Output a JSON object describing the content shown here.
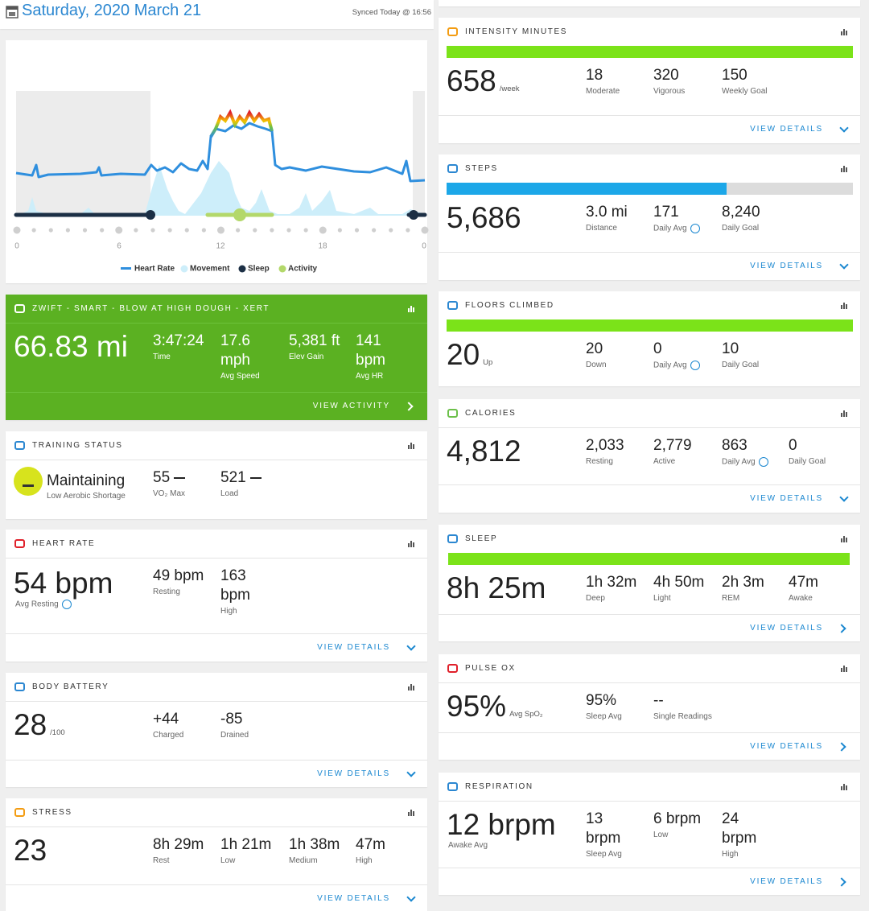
{
  "header": {
    "date": "Saturday, 2020 March 21",
    "synced": "Synced Today @ 16:56"
  },
  "timeline": {
    "hour_labels": [
      "0",
      "6",
      "12",
      "18",
      "0"
    ],
    "legend": [
      "Heart Rate",
      "Movement",
      "Sleep",
      "Activity"
    ]
  },
  "cards": [
    {
      "title": "ZWIFT - SMART - BLOW AT HIGH DOUGH - XERT",
      "value": "66.83 mi",
      "stats": [
        {
          "value": "3:47:24",
          "label": "Time"
        },
        {
          "value": "17.6 mph",
          "label": "Avg Speed"
        },
        {
          "value": "5,381 ft",
          "label": "Elev Gain"
        },
        {
          "value": "141 bpm",
          "label": "Avg HR"
        }
      ],
      "link": "VIEW ACTIVITY"
    },
    {
      "title": "TRAINING STATUS",
      "value": "Maintaining",
      "caption": "Low Aerobic Shortage",
      "stats": [
        {
          "value": "55",
          "label": "VO₂ Max"
        },
        {
          "value": "521",
          "label": "Load"
        }
      ]
    },
    {
      "title": "HEART RATE",
      "value": "54 bpm",
      "caption": "Avg Resting",
      "stats": [
        {
          "value": "49 bpm",
          "label": "Resting"
        },
        {
          "value": "163 bpm",
          "label": "High"
        }
      ],
      "link": "VIEW DETAILS"
    },
    {
      "title": "BODY BATTERY",
      "value": "28",
      "unit": "/100",
      "stats": [
        {
          "value": "+44",
          "label": "Charged"
        },
        {
          "value": "-85",
          "label": "Drained"
        }
      ],
      "link": "VIEW DETAILS"
    },
    {
      "title": "STRESS",
      "value": "23",
      "stats": [
        {
          "value": "8h 29m",
          "label": "Rest"
        },
        {
          "value": "1h 21m",
          "label": "Low"
        },
        {
          "value": "1h 38m",
          "label": "Medium"
        },
        {
          "value": "47m",
          "label": "High"
        }
      ],
      "link": "VIEW DETAILS"
    },
    {
      "title": "INTENSITY MINUTES",
      "value": "658",
      "unit": "/week",
      "stats": [
        {
          "value": "18",
          "label": "Moderate"
        },
        {
          "value": "320",
          "label": "Vigorous"
        },
        {
          "value": "150",
          "label": "Weekly Goal"
        }
      ],
      "link": "VIEW DETAILS"
    },
    {
      "title": "STEPS",
      "value": "5,686",
      "stats": [
        {
          "value": "3.0 mi",
          "label": "Distance"
        },
        {
          "value": "171",
          "label": "Daily Avg"
        },
        {
          "value": "8,240",
          "label": "Daily Goal"
        }
      ],
      "link": "VIEW DETAILS"
    },
    {
      "title": "FLOORS CLIMBED",
      "value": "20",
      "unit": "Up",
      "stats": [
        {
          "value": "20",
          "label": "Down"
        },
        {
          "value": "0",
          "label": "Daily Avg"
        },
        {
          "value": "10",
          "label": "Daily Goal"
        }
      ]
    },
    {
      "title": "CALORIES",
      "value": "4,812",
      "stats": [
        {
          "value": "2,033",
          "label": "Resting"
        },
        {
          "value": "2,779",
          "label": "Active"
        },
        {
          "value": "863",
          "label": "Daily Avg"
        },
        {
          "value": "0",
          "label": "Daily Goal"
        }
      ],
      "link": "VIEW DETAILS"
    },
    {
      "title": "SLEEP",
      "value": "8h 25m",
      "stats": [
        {
          "value": "1h 32m",
          "label": "Deep"
        },
        {
          "value": "4h 50m",
          "label": "Light"
        },
        {
          "value": "2h 3m",
          "label": "REM"
        },
        {
          "value": "47m",
          "label": "Awake"
        }
      ],
      "link": "VIEW DETAILS"
    },
    {
      "title": "PULSE OX",
      "value": "95%",
      "unit": "Avg SpO₂",
      "stats": [
        {
          "value": "95%",
          "label": "Sleep Avg"
        },
        {
          "value": "--",
          "label": "Single Readings"
        }
      ],
      "link": "VIEW DETAILS"
    },
    {
      "title": "RESPIRATION",
      "value": "12 brpm",
      "caption": "Awake Avg",
      "stats": [
        {
          "value": "13 brpm",
          "label": "Sleep Avg"
        },
        {
          "value": "6 brpm",
          "label": "Low"
        },
        {
          "value": "24 brpm",
          "label": "High"
        }
      ],
      "link": "VIEW DETAILS"
    }
  ]
}
